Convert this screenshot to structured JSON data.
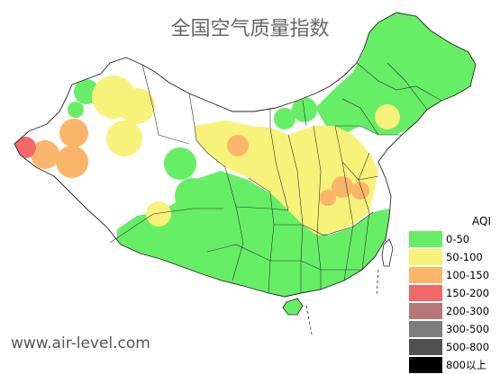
{
  "title": "全国空气质量指数",
  "watermark": "www.air-level.com",
  "map": {
    "base_color": "#ffffff",
    "border_color": "#222222"
  },
  "legend": {
    "title": "AQI",
    "items": [
      {
        "label": "0-50",
        "color": "#66ee66"
      },
      {
        "label": "50-100",
        "color": "#f7f27a"
      },
      {
        "label": "100-150",
        "color": "#fbb56a"
      },
      {
        "label": "150-200",
        "color": "#f06868"
      },
      {
        "label": "200-300",
        "color": "#b57777"
      },
      {
        "label": "300-500",
        "color": "#7c7c7c"
      },
      {
        "label": "500-800",
        "color": "#505050"
      },
      {
        "label": "800以上",
        "color": "#000000"
      }
    ]
  }
}
